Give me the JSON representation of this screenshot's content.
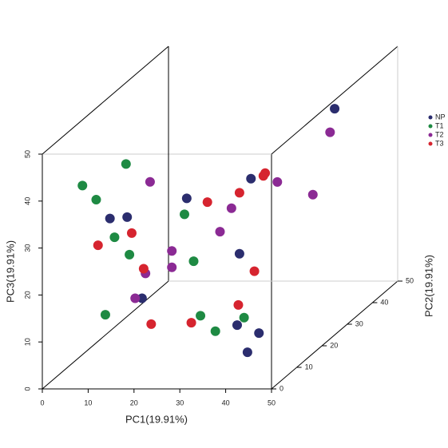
{
  "chart_data": {
    "type": "scatter3d",
    "x_label": "PC1(19.91%)",
    "y_label": "PC2(19.91%)",
    "z_label": "PC3(19.91%)",
    "xlim": [
      0,
      50
    ],
    "ylim": [
      0,
      50
    ],
    "zlim": [
      0,
      50
    ],
    "xticks": [
      0,
      10,
      20,
      30,
      40,
      50
    ],
    "yticks": [
      0,
      10,
      20,
      30,
      40,
      50
    ],
    "zticks": [
      0,
      10,
      20,
      30,
      40,
      50
    ],
    "series": [
      {
        "name": "NP",
        "color": "#2b2d6e",
        "x": [
          39,
          29,
          26,
          12,
          13,
          26.5,
          19,
          37,
          39,
          42
        ],
        "y": [
          45,
          30,
          10,
          5,
          10,
          30,
          5,
          10,
          15,
          5
        ],
        "z": [
          39,
          31,
          36,
          34,
          32,
          15,
          17,
          9,
          5,
          5.5
        ]
      },
      {
        "name": "T1",
        "color": "#1e8a43",
        "x": [
          10,
          6,
          9,
          20,
          13,
          13.5,
          22,
          11,
          29,
          35,
          33
        ],
        "y": [
          15,
          5,
          5,
          20,
          5,
          10,
          20,
          5,
          10,
          5,
          20
        ],
        "z": [
          41,
          41,
          38,
          28,
          30,
          24,
          18,
          13.5,
          11,
          10,
          6
        ]
      },
      {
        "name": "T2",
        "color": "#8b2a94",
        "x": [
          38,
          18,
          32,
          37,
          27.5,
          25,
          20,
          20,
          17,
          17.5
        ],
        "y": [
          45,
          10,
          35,
          40,
          25,
          25,
          15,
          15,
          10,
          5
        ],
        "z": [
          34,
          39.5,
          28,
          23,
          27,
          22,
          22.5,
          19,
          20,
          17
        ]
      },
      {
        "name": "T3",
        "color": "#d6242f",
        "x": [
          26.6,
          26.2,
          26.5,
          25,
          14,
          9.4,
          16.6,
          27,
          29,
          27,
          21
        ],
        "y": [
          40,
          40,
          30,
          20,
          10,
          5,
          10,
          35,
          25,
          10,
          5
        ],
        "z": [
          27.6,
          27,
          28,
          30.6,
          28.6,
          28.3,
          21,
          9,
          6.4,
          9.5,
          11.5
        ]
      }
    ]
  }
}
